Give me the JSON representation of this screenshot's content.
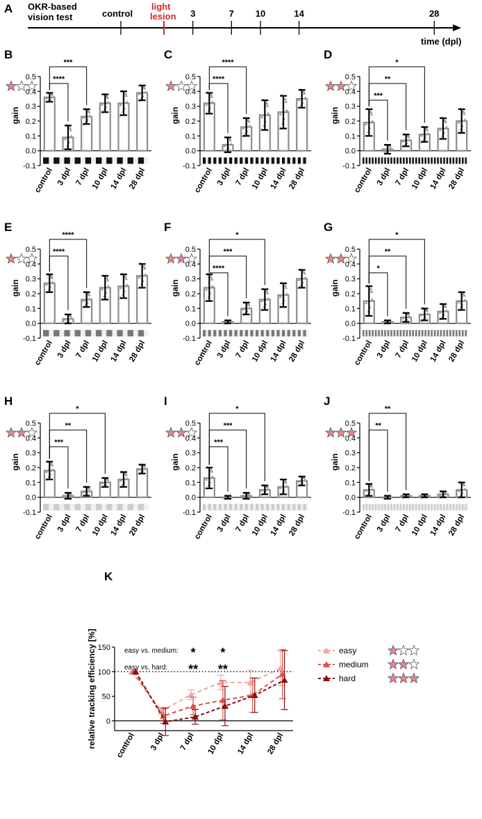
{
  "timeline": {
    "panel_letter": "A",
    "label_line1": "OKR-based",
    "label_line2": "vision test",
    "control_label": "control",
    "lesion_label_line1": "light",
    "lesion_label_line2": "lesion",
    "axis_label": "time (dpl)",
    "ticks": [
      "3",
      "7",
      "10",
      "14",
      "28"
    ],
    "lesion_color": "#d62728"
  },
  "colors": {
    "star_fill": "#e8848a",
    "bar_edge": "#8c8c8c",
    "point": "#9a9a9a",
    "easy": "#f0a8a8",
    "medium": "#d9534f",
    "hard": "#8b1010"
  },
  "chart_data": [
    {
      "panel": "B",
      "type": "bar",
      "difficulty_stars": 1,
      "stripe_count": 10,
      "stripe_color": "#111111",
      "categories": [
        "control",
        "3 dpl",
        "7 dpl",
        "10 dpl",
        "14 dpl",
        "28 dpl"
      ],
      "values": [
        0.36,
        0.09,
        0.23,
        0.32,
        0.32,
        0.39
      ],
      "errors": [
        0.03,
        0.08,
        0.05,
        0.06,
        0.08,
        0.05
      ],
      "ylabel": "gain",
      "ylim": [
        -0.1,
        0.5
      ],
      "yticks": [
        "-0.1",
        "0.0",
        "0.1",
        "0.2",
        "0.3",
        "0.4",
        "0.5"
      ],
      "significance": [
        {
          "from": 0,
          "to": 1,
          "label": "****"
        },
        {
          "from": 0,
          "to": 2,
          "label": "***"
        }
      ]
    },
    {
      "panel": "C",
      "type": "bar",
      "difficulty_stars": 1,
      "stripe_count": 20,
      "stripe_color": "#111111",
      "categories": [
        "control",
        "3 dpl",
        "7 dpl",
        "10 dpl",
        "14 dpl",
        "28 dpl"
      ],
      "values": [
        0.32,
        0.04,
        0.16,
        0.24,
        0.26,
        0.35
      ],
      "errors": [
        0.07,
        0.05,
        0.06,
        0.1,
        0.11,
        0.06
      ],
      "ylabel": "gain",
      "ylim": [
        -0.1,
        0.5
      ],
      "yticks": [
        "-0.1",
        "0.0",
        "0.1",
        "0.2",
        "0.3",
        "0.4",
        "0.5"
      ],
      "significance": [
        {
          "from": 0,
          "to": 1,
          "label": "****"
        },
        {
          "from": 0,
          "to": 2,
          "label": "****"
        }
      ]
    },
    {
      "panel": "D",
      "type": "bar",
      "difficulty_stars": 2,
      "stripe_count": 34,
      "stripe_color": "#111111",
      "categories": [
        "control",
        "3 dpl",
        "7 dpl",
        "10 dpl",
        "14 dpl",
        "28 dpl"
      ],
      "values": [
        0.19,
        0.01,
        0.07,
        0.11,
        0.15,
        0.2
      ],
      "errors": [
        0.09,
        0.03,
        0.04,
        0.05,
        0.07,
        0.08
      ],
      "ylabel": "gain",
      "ylim": [
        -0.1,
        0.5
      ],
      "yticks": [
        "-0.1",
        "0.0",
        "0.1",
        "0.2",
        "0.3",
        "0.4",
        "0.5"
      ],
      "significance": [
        {
          "from": 0,
          "to": 1,
          "label": "***"
        },
        {
          "from": 0,
          "to": 2,
          "label": "**"
        },
        {
          "from": 0,
          "to": 3,
          "label": "*"
        }
      ]
    },
    {
      "panel": "E",
      "type": "bar",
      "difficulty_stars": 1,
      "stripe_count": 10,
      "stripe_color": "#777777",
      "categories": [
        "control",
        "3 dpl",
        "7 dpl",
        "10 dpl",
        "14 dpl",
        "28 dpl"
      ],
      "values": [
        0.27,
        0.03,
        0.16,
        0.24,
        0.25,
        0.32
      ],
      "errors": [
        0.06,
        0.03,
        0.05,
        0.08,
        0.08,
        0.08
      ],
      "ylabel": "gain",
      "ylim": [
        -0.1,
        0.5
      ],
      "yticks": [
        "-0.1",
        "0.0",
        "0.1",
        "0.2",
        "0.3",
        "0.4",
        "0.5"
      ],
      "significance": [
        {
          "from": 0,
          "to": 1,
          "label": "****"
        },
        {
          "from": 0,
          "to": 2,
          "label": "****"
        }
      ]
    },
    {
      "panel": "F",
      "type": "bar",
      "difficulty_stars": 2,
      "stripe_count": 20,
      "stripe_color": "#777777",
      "categories": [
        "control",
        "3 dpl",
        "7 dpl",
        "10 dpl",
        "14 dpl",
        "28 dpl"
      ],
      "values": [
        0.24,
        0.01,
        0.1,
        0.16,
        0.19,
        0.3
      ],
      "errors": [
        0.09,
        0.01,
        0.04,
        0.07,
        0.08,
        0.06
      ],
      "ylabel": "gain",
      "ylim": [
        -0.1,
        0.5
      ],
      "yticks": [
        "-0.1",
        "0.0",
        "0.1",
        "0.2",
        "0.3",
        "0.4",
        "0.5"
      ],
      "significance": [
        {
          "from": 0,
          "to": 1,
          "label": "****"
        },
        {
          "from": 0,
          "to": 2,
          "label": "***"
        },
        {
          "from": 0,
          "to": 3,
          "label": "*"
        }
      ]
    },
    {
      "panel": "G",
      "type": "bar",
      "difficulty_stars": 2,
      "stripe_count": 34,
      "stripe_color": "#777777",
      "categories": [
        "control",
        "3 dpl",
        "7 dpl",
        "10 dpl",
        "14 dpl",
        "28 dpl"
      ],
      "values": [
        0.15,
        0.01,
        0.04,
        0.06,
        0.08,
        0.15
      ],
      "errors": [
        0.1,
        0.01,
        0.03,
        0.04,
        0.05,
        0.06
      ],
      "ylabel": "gain",
      "ylim": [
        -0.1,
        0.5
      ],
      "yticks": [
        "-0.1",
        "0.0",
        "0.1",
        "0.2",
        "0.3",
        "0.4",
        "0.5"
      ],
      "significance": [
        {
          "from": 0,
          "to": 1,
          "label": "*"
        },
        {
          "from": 0,
          "to": 2,
          "label": "**"
        },
        {
          "from": 0,
          "to": 3,
          "label": "*"
        }
      ]
    },
    {
      "panel": "H",
      "type": "bar",
      "difficulty_stars": 2,
      "stripe_count": 10,
      "stripe_color": "#cccccc",
      "categories": [
        "control",
        "3 dpl",
        "7 dpl",
        "10 dpl",
        "14 dpl",
        "28 dpl"
      ],
      "values": [
        0.18,
        0.01,
        0.04,
        0.1,
        0.12,
        0.19
      ],
      "errors": [
        0.06,
        0.02,
        0.03,
        0.03,
        0.05,
        0.03
      ],
      "ylabel": "gain",
      "ylim": [
        -0.1,
        0.5
      ],
      "yticks": [
        "-0.1",
        "0.0",
        "0.1",
        "0.2",
        "0.3",
        "0.4",
        "0.5"
      ],
      "significance": [
        {
          "from": 0,
          "to": 1,
          "label": "***"
        },
        {
          "from": 0,
          "to": 2,
          "label": "**"
        },
        {
          "from": 0,
          "to": 3,
          "label": "*"
        }
      ]
    },
    {
      "panel": "I",
      "type": "bar",
      "difficulty_stars": 2,
      "stripe_count": 20,
      "stripe_color": "#cccccc",
      "categories": [
        "control",
        "3 dpl",
        "7 dpl",
        "10 dpl",
        "14 dpl",
        "28 dpl"
      ],
      "values": [
        0.13,
        0.0,
        0.01,
        0.05,
        0.07,
        0.11
      ],
      "errors": [
        0.07,
        0.01,
        0.02,
        0.03,
        0.05,
        0.03
      ],
      "ylabel": "gain",
      "ylim": [
        -0.1,
        0.5
      ],
      "yticks": [
        "-0.1",
        "0.0",
        "0.1",
        "0.2",
        "0.3",
        "0.4",
        "0.5"
      ],
      "significance": [
        {
          "from": 0,
          "to": 1,
          "label": "***"
        },
        {
          "from": 0,
          "to": 2,
          "label": "***"
        },
        {
          "from": 0,
          "to": 3,
          "label": "*"
        }
      ]
    },
    {
      "panel": "J",
      "type": "bar",
      "difficulty_stars": 3,
      "stripe_count": 34,
      "stripe_color": "#cccccc",
      "categories": [
        "control",
        "3 dpl",
        "7 dpl",
        "10 dpl",
        "14 dpl",
        "28 dpl"
      ],
      "values": [
        0.05,
        0.0,
        0.01,
        0.01,
        0.02,
        0.05
      ],
      "errors": [
        0.04,
        0.01,
        0.01,
        0.01,
        0.02,
        0.05
      ],
      "ylabel": "gain",
      "ylim": [
        -0.1,
        0.5
      ],
      "yticks": [
        "-0.1",
        "0.0",
        "0.1",
        "0.2",
        "0.3",
        "0.4",
        "0.5"
      ],
      "significance": [
        {
          "from": 0,
          "to": 1,
          "label": "**"
        },
        {
          "from": 0,
          "to": 2,
          "label": "**"
        }
      ]
    },
    {
      "panel": "K",
      "type": "line",
      "categories": [
        "control",
        "3 dpl",
        "7 dpl",
        "10 dpl",
        "14 dpl",
        "28 dpl"
      ],
      "ylabel": "relative tracking efficiency [%]",
      "ylim": [
        -20,
        150
      ],
      "yticks": [
        "0",
        "50",
        "100",
        "150"
      ],
      "reference_line": 100,
      "series": [
        {
          "name": "easy",
          "stars": 1,
          "values": [
            100,
            20,
            53,
            78,
            78,
            107
          ],
          "errors": [
            0,
            8,
            10,
            15,
            25,
            35
          ]
        },
        {
          "name": "medium",
          "stars": 2,
          "values": [
            100,
            10,
            30,
            42,
            52,
            95
          ],
          "errors": [
            0,
            15,
            18,
            40,
            35,
            50
          ]
        },
        {
          "name": "hard",
          "stars": 3,
          "values": [
            100,
            -2,
            8,
            30,
            52,
            83
          ],
          "errors": [
            0,
            28,
            15,
            40,
            35,
            60
          ]
        }
      ],
      "comparisons": [
        {
          "label": "easy vs. medium:",
          "marks": [
            {
              "x": "7 dpl",
              "text": "*"
            },
            {
              "x": "10 dpl",
              "text": "*"
            }
          ]
        },
        {
          "label": "easy vs. hard:",
          "marks": [
            {
              "x": "7 dpl",
              "text": "**"
            },
            {
              "x": "10 dpl",
              "text": "**"
            }
          ]
        }
      ]
    }
  ]
}
